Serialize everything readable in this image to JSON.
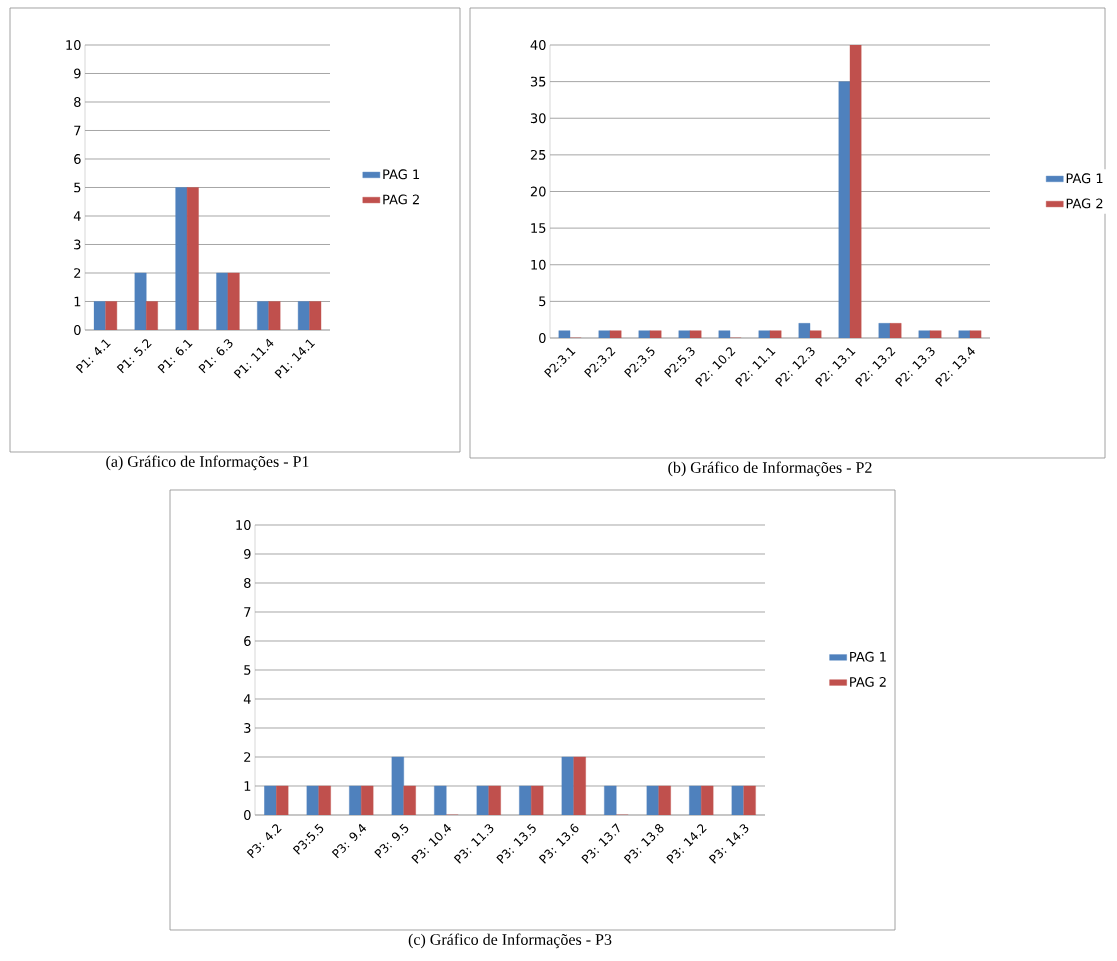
{
  "chart_data": [
    {
      "type": "bar",
      "title": "(a) Gráfico de Informações - P1",
      "categories": [
        "P1: 4.1",
        "P1: 5.2",
        "P1: 6.1",
        "P1: 6.3",
        "P1: 11.4",
        "P1: 14.1"
      ],
      "series": [
        {
          "name": "PAG 1",
          "color": "#4f81bd",
          "values": [
            1,
            2,
            5,
            2,
            1,
            1
          ]
        },
        {
          "name": "PAG 2",
          "color": "#c0504d",
          "values": [
            1,
            1,
            5,
            2,
            1,
            1
          ]
        }
      ],
      "ylim": [
        0,
        10
      ],
      "yticks": [
        0,
        1,
        2,
        3,
        4,
        5,
        6,
        7,
        8,
        9,
        10
      ],
      "grid": "y",
      "legend": "right"
    },
    {
      "type": "bar",
      "title": "(b) Gráfico de Informações - P2",
      "categories": [
        "P2:3.1",
        "P2:3.2",
        "P2:3.5",
        "P2:5.3",
        "P2: 10.2",
        "P2: 11.1",
        "P2: 12.3",
        "P2: 13.1",
        "P2: 13.2",
        "P2: 13.3",
        "P2: 13.4"
      ],
      "series": [
        {
          "name": "PAG 1",
          "color": "#4f81bd",
          "values": [
            1,
            1,
            1,
            1,
            1,
            1,
            2,
            35,
            2,
            1,
            1
          ]
        },
        {
          "name": "PAG 2",
          "color": "#c0504d",
          "values": [
            0,
            1,
            1,
            1,
            0,
            1,
            1,
            40,
            2,
            1,
            1
          ]
        }
      ],
      "ylim": [
        0,
        40
      ],
      "yticks": [
        0,
        5,
        10,
        15,
        20,
        25,
        30,
        35,
        40
      ],
      "grid": "y",
      "legend": "right"
    },
    {
      "type": "bar",
      "title": "(c) Gráfico de Informações - P3",
      "categories": [
        "P3: 4.2",
        "P3:5.5",
        "P3: 9.4",
        "P3: 9.5",
        "P3: 10.4",
        "P3: 11.3",
        "P3: 13.5",
        "P3: 13.6",
        "P3: 13.7",
        "P3: 13.8",
        "P3: 14.2",
        "P3: 14.3"
      ],
      "series": [
        {
          "name": "PAG 1",
          "color": "#4f81bd",
          "values": [
            1,
            1,
            1,
            2,
            1,
            1,
            1,
            2,
            1,
            1,
            1,
            1
          ]
        },
        {
          "name": "PAG 2",
          "color": "#c0504d",
          "values": [
            1,
            1,
            1,
            1,
            0,
            1,
            1,
            2,
            0,
            1,
            1,
            1
          ]
        }
      ],
      "ylim": [
        0,
        10
      ],
      "yticks": [
        0,
        1,
        2,
        3,
        4,
        5,
        6,
        7,
        8,
        9,
        10
      ],
      "grid": "y",
      "legend": "right"
    }
  ]
}
